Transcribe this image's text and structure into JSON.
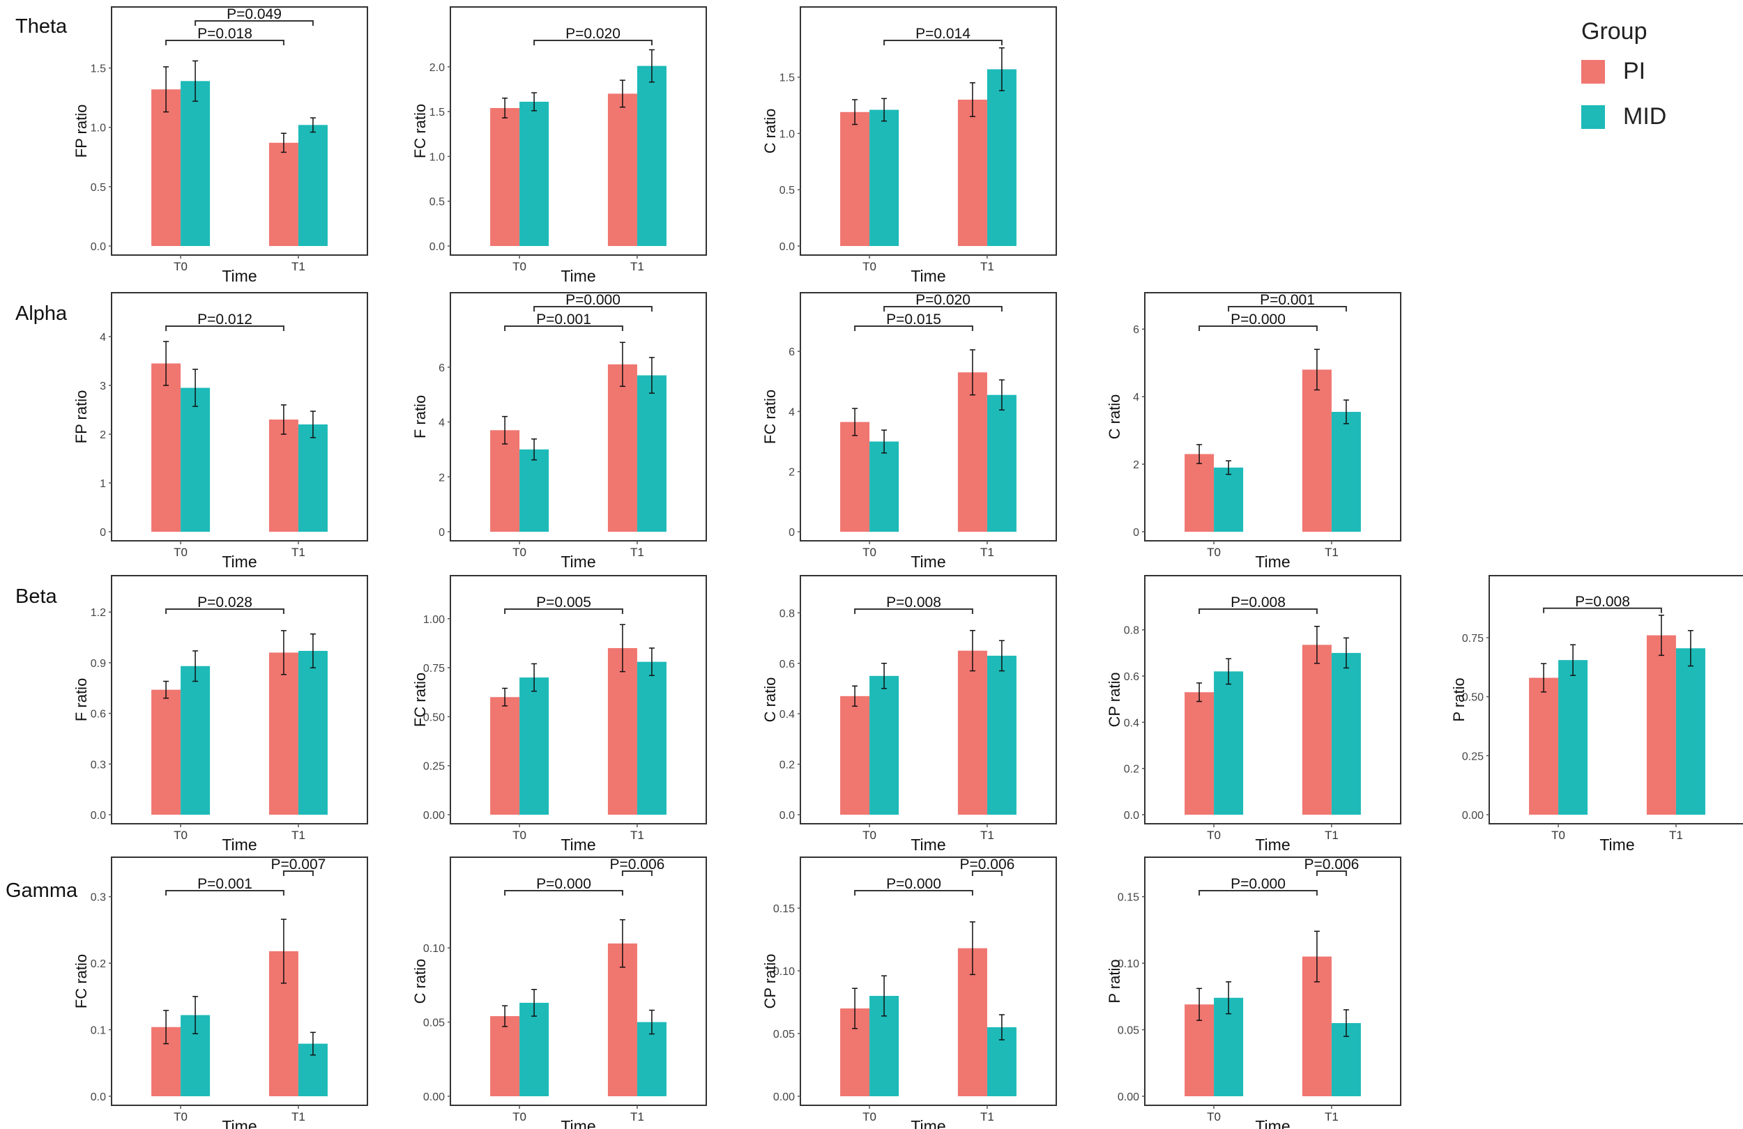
{
  "legend": {
    "title": "Group",
    "items": [
      {
        "label": "PI",
        "color": "#F07670"
      },
      {
        "label": "MID",
        "color": "#1DBAB8"
      }
    ]
  },
  "rows": [
    "Theta",
    "Alpha",
    "Beta",
    "Gamma"
  ],
  "x_label": "Time",
  "chart_data": [
    {
      "type": "bar",
      "band": "Theta",
      "ylabel": "FP  ratio",
      "categories": [
        "T0",
        "T1"
      ],
      "yticks": [
        "0.0",
        "0.5",
        "1.0",
        "1.5"
      ],
      "tickvals": [
        0,
        0.5,
        1,
        1.5
      ],
      "ylim": [
        0,
        1.85
      ],
      "series": [
        {
          "name": "PI",
          "values": [
            1.32,
            0.87
          ],
          "errors": [
            0.19,
            0.08
          ]
        },
        {
          "name": "MID",
          "values": [
            1.39,
            1.02
          ],
          "errors": [
            0.17,
            0.06
          ]
        }
      ],
      "comparisons": [
        {
          "label": "P=0.018",
          "from": [
            0,
            0
          ],
          "to": [
            1,
            0
          ]
        },
        {
          "label": "P=0.049",
          "from": [
            0,
            1
          ],
          "to": [
            1,
            1
          ]
        }
      ]
    },
    {
      "type": "bar",
      "band": "Theta",
      "ylabel": "FC  ratio",
      "categories": [
        "T0",
        "T1"
      ],
      "yticks": [
        "0.0",
        "0.5",
        "1.0",
        "1.5",
        "2.0"
      ],
      "tickvals": [
        0,
        0.5,
        1,
        1.5,
        2
      ],
      "ylim": [
        0,
        2.45
      ],
      "series": [
        {
          "name": "PI",
          "values": [
            1.54,
            1.7
          ],
          "errors": [
            0.11,
            0.15
          ]
        },
        {
          "name": "MID",
          "values": [
            1.61,
            2.01
          ],
          "errors": [
            0.1,
            0.18
          ]
        }
      ],
      "comparisons": [
        {
          "label": "P=0.020",
          "from": [
            0,
            1
          ],
          "to": [
            1,
            1
          ]
        }
      ]
    },
    {
      "type": "bar",
      "band": "Theta",
      "ylabel": "C  ratio",
      "categories": [
        "T0",
        "T1"
      ],
      "yticks": [
        "0.0",
        "0.5",
        "1.0",
        "1.5"
      ],
      "tickvals": [
        0,
        0.5,
        1,
        1.5
      ],
      "ylim": [
        0,
        1.95
      ],
      "series": [
        {
          "name": "PI",
          "values": [
            1.19,
            1.3
          ],
          "errors": [
            0.11,
            0.15
          ]
        },
        {
          "name": "MID",
          "values": [
            1.21,
            1.57
          ],
          "errors": [
            0.1,
            0.19
          ]
        }
      ],
      "comparisons": [
        {
          "label": "P=0.014",
          "from": [
            0,
            1
          ],
          "to": [
            1,
            1
          ]
        }
      ]
    },
    {
      "type": "bar",
      "band": "Alpha",
      "ylabel": "FP  ratio",
      "categories": [
        "T0",
        "T1"
      ],
      "yticks": [
        "0",
        "1",
        "2",
        "3",
        "4"
      ],
      "tickvals": [
        0,
        1,
        2,
        3,
        4
      ],
      "ylim": [
        0,
        4.5
      ],
      "series": [
        {
          "name": "PI",
          "values": [
            3.45,
            2.3
          ],
          "errors": [
            0.45,
            0.3
          ]
        },
        {
          "name": "MID",
          "values": [
            2.95,
            2.2
          ],
          "errors": [
            0.38,
            0.27
          ]
        }
      ],
      "comparisons": [
        {
          "label": "P=0.012",
          "from": [
            0,
            0
          ],
          "to": [
            1,
            0
          ]
        }
      ]
    },
    {
      "type": "bar",
      "band": "Alpha",
      "ylabel": "F  ratio",
      "categories": [
        "T0",
        "T1"
      ],
      "yticks": [
        "0",
        "2",
        "4",
        "6"
      ],
      "tickvals": [
        0,
        2,
        4,
        6
      ],
      "ylim": [
        0,
        8
      ],
      "series": [
        {
          "name": "PI",
          "values": [
            3.7,
            6.1
          ],
          "errors": [
            0.5,
            0.8
          ]
        },
        {
          "name": "MID",
          "values": [
            3.0,
            5.7
          ],
          "errors": [
            0.38,
            0.65
          ]
        }
      ],
      "comparisons": [
        {
          "label": "P=0.001",
          "from": [
            0,
            0
          ],
          "to": [
            1,
            0
          ]
        },
        {
          "label": "P=0.000",
          "from": [
            0,
            1
          ],
          "to": [
            1,
            1
          ]
        }
      ]
    },
    {
      "type": "bar",
      "band": "Alpha",
      "ylabel": "FC  ratio",
      "categories": [
        "T0",
        "T1"
      ],
      "yticks": [
        "0",
        "2",
        "4",
        "6"
      ],
      "tickvals": [
        0,
        2,
        4,
        6
      ],
      "ylim": [
        0,
        7.3
      ],
      "series": [
        {
          "name": "PI",
          "values": [
            3.65,
            5.3
          ],
          "errors": [
            0.45,
            0.75
          ]
        },
        {
          "name": "MID",
          "values": [
            3.0,
            4.55
          ],
          "errors": [
            0.38,
            0.5
          ]
        }
      ],
      "comparisons": [
        {
          "label": "P=0.015",
          "from": [
            0,
            0
          ],
          "to": [
            1,
            0
          ]
        },
        {
          "label": "P=0.020",
          "from": [
            0,
            1
          ],
          "to": [
            1,
            1
          ]
        }
      ]
    },
    {
      "type": "bar",
      "band": "Alpha",
      "ylabel": "C  ratio",
      "categories": [
        "T0",
        "T1"
      ],
      "yticks": [
        "0",
        "2",
        "4",
        "6"
      ],
      "tickvals": [
        0,
        2,
        4,
        6
      ],
      "ylim": [
        0,
        6.5
      ],
      "series": [
        {
          "name": "PI",
          "values": [
            2.3,
            4.8
          ],
          "errors": [
            0.28,
            0.6
          ]
        },
        {
          "name": "MID",
          "values": [
            1.9,
            3.55
          ],
          "errors": [
            0.2,
            0.35
          ]
        }
      ],
      "comparisons": [
        {
          "label": "P=0.000",
          "from": [
            0,
            0
          ],
          "to": [
            1,
            0
          ]
        },
        {
          "label": "P=0.001",
          "from": [
            0,
            1
          ],
          "to": [
            1,
            1
          ]
        }
      ]
    },
    {
      "type": "bar",
      "band": "Beta",
      "ylabel": "F  ratio",
      "categories": [
        "T0",
        "T1"
      ],
      "yticks": [
        "0.0",
        "0.3",
        "0.6",
        "0.9",
        "1.2"
      ],
      "tickvals": [
        0,
        0.3,
        0.6,
        0.9,
        1.2
      ],
      "ylim": [
        0,
        1.3
      ],
      "series": [
        {
          "name": "PI",
          "values": [
            0.74,
            0.96
          ],
          "errors": [
            0.05,
            0.13
          ]
        },
        {
          "name": "MID",
          "values": [
            0.88,
            0.97
          ],
          "errors": [
            0.09,
            0.1
          ]
        }
      ],
      "comparisons": [
        {
          "label": "P=0.028",
          "from": [
            0,
            0
          ],
          "to": [
            1,
            0
          ]
        }
      ]
    },
    {
      "type": "bar",
      "band": "Beta",
      "ylabel": "FC  ratio",
      "categories": [
        "T0",
        "T1"
      ],
      "yticks": [
        "0.00",
        "0.25",
        "0.50",
        "0.75",
        "1.00"
      ],
      "tickvals": [
        0,
        0.25,
        0.5,
        0.75,
        1
      ],
      "ylim": [
        0,
        1.12
      ],
      "series": [
        {
          "name": "PI",
          "values": [
            0.6,
            0.85
          ],
          "errors": [
            0.045,
            0.12
          ]
        },
        {
          "name": "MID",
          "values": [
            0.7,
            0.78
          ],
          "errors": [
            0.07,
            0.07
          ]
        }
      ],
      "comparisons": [
        {
          "label": "P=0.005",
          "from": [
            0,
            0
          ],
          "to": [
            1,
            0
          ]
        }
      ]
    },
    {
      "type": "bar",
      "band": "Beta",
      "ylabel": "C  ratio",
      "categories": [
        "T0",
        "T1"
      ],
      "yticks": [
        "0.0",
        "0.2",
        "0.4",
        "0.6",
        "0.8"
      ],
      "tickvals": [
        0,
        0.2,
        0.4,
        0.6,
        0.8
      ],
      "ylim": [
        0,
        0.87
      ],
      "series": [
        {
          "name": "PI",
          "values": [
            0.47,
            0.65
          ],
          "errors": [
            0.04,
            0.08
          ]
        },
        {
          "name": "MID",
          "values": [
            0.55,
            0.63
          ],
          "errors": [
            0.05,
            0.06
          ]
        }
      ],
      "comparisons": [
        {
          "label": "P=0.008",
          "from": [
            0,
            0
          ],
          "to": [
            1,
            0
          ]
        }
      ]
    },
    {
      "type": "bar",
      "band": "Beta",
      "ylabel": "CP  ratio",
      "categories": [
        "T0",
        "T1"
      ],
      "yticks": [
        "0.0",
        "0.2",
        "0.4",
        "0.6",
        "0.8"
      ],
      "tickvals": [
        0,
        0.2,
        0.4,
        0.6,
        0.8
      ],
      "ylim": [
        0,
        0.95
      ],
      "series": [
        {
          "name": "PI",
          "values": [
            0.53,
            0.735
          ],
          "errors": [
            0.04,
            0.08
          ]
        },
        {
          "name": "MID",
          "values": [
            0.62,
            0.7
          ],
          "errors": [
            0.055,
            0.065
          ]
        }
      ],
      "comparisons": [
        {
          "label": "P=0.008",
          "from": [
            0,
            0
          ],
          "to": [
            1,
            0
          ]
        }
      ]
    },
    {
      "type": "bar",
      "band": "Beta",
      "ylabel": "P  ratio",
      "categories": [
        "T0",
        "T1"
      ],
      "yticks": [
        "0.00",
        "0.25",
        "0.50",
        "0.75"
      ],
      "tickvals": [
        0,
        0.25,
        0.5,
        0.75
      ],
      "ylim": [
        0,
        0.93
      ],
      "series": [
        {
          "name": "PI",
          "values": [
            0.58,
            0.76
          ],
          "errors": [
            0.06,
            0.085
          ]
        },
        {
          "name": "MID",
          "values": [
            0.655,
            0.705
          ],
          "errors": [
            0.065,
            0.075
          ]
        }
      ],
      "comparisons": [
        {
          "label": "P=0.008",
          "from": [
            0,
            0
          ],
          "to": [
            1,
            0
          ]
        }
      ]
    },
    {
      "type": "bar",
      "band": "Gamma",
      "ylabel": "FC  ratio",
      "categories": [
        "T0",
        "T1"
      ],
      "yticks": [
        "0.0",
        "0.1",
        "0.2",
        "0.3"
      ],
      "tickvals": [
        0,
        0.1,
        0.2,
        0.3
      ],
      "ylim": [
        0,
        0.33
      ],
      "series": [
        {
          "name": "PI",
          "values": [
            0.104,
            0.218
          ],
          "errors": [
            0.025,
            0.048
          ]
        },
        {
          "name": "MID",
          "values": [
            0.122,
            0.079
          ],
          "errors": [
            0.028,
            0.017
          ]
        }
      ],
      "comparisons": [
        {
          "label": "P=0.001",
          "from": [
            0,
            0
          ],
          "to": [
            1,
            0
          ]
        },
        {
          "label": "P=0.007",
          "from": [
            1,
            0
          ],
          "to": [
            1,
            1
          ]
        }
      ]
    },
    {
      "type": "bar",
      "band": "Gamma",
      "ylabel": "C  ratio",
      "categories": [
        "T0",
        "T1"
      ],
      "yticks": [
        "0.00",
        "0.05",
        "0.10"
      ],
      "tickvals": [
        0,
        0.05,
        0.1
      ],
      "ylim": [
        0,
        0.148
      ],
      "series": [
        {
          "name": "PI",
          "values": [
            0.054,
            0.103
          ],
          "errors": [
            0.007,
            0.016
          ]
        },
        {
          "name": "MID",
          "values": [
            0.063,
            0.05
          ],
          "errors": [
            0.009,
            0.008
          ]
        }
      ],
      "comparisons": [
        {
          "label": "P=0.000",
          "from": [
            0,
            0
          ],
          "to": [
            1,
            0
          ]
        },
        {
          "label": "P=0.006",
          "from": [
            1,
            0
          ],
          "to": [
            1,
            1
          ]
        }
      ]
    },
    {
      "type": "bar",
      "band": "Gamma",
      "ylabel": "CP  ratio",
      "categories": [
        "T0",
        "T1"
      ],
      "yticks": [
        "0.00",
        "0.05",
        "0.10",
        "0.15"
      ],
      "tickvals": [
        0,
        0.05,
        0.1,
        0.15
      ],
      "ylim": [
        0,
        0.175
      ],
      "series": [
        {
          "name": "PI",
          "values": [
            0.07,
            0.118
          ],
          "errors": [
            0.016,
            0.021
          ]
        },
        {
          "name": "MID",
          "values": [
            0.08,
            0.055
          ],
          "errors": [
            0.016,
            0.01
          ]
        }
      ],
      "comparisons": [
        {
          "label": "P=0.000",
          "from": [
            0,
            0
          ],
          "to": [
            1,
            0
          ]
        },
        {
          "label": "P=0.006",
          "from": [
            1,
            0
          ],
          "to": [
            1,
            1
          ]
        }
      ]
    },
    {
      "type": "bar",
      "band": "Gamma",
      "ylabel": "P  ratio",
      "categories": [
        "T0",
        "T1"
      ],
      "yticks": [
        "0.00",
        "0.05",
        "0.10",
        "0.15"
      ],
      "tickvals": [
        0,
        0.05,
        0.1,
        0.15
      ],
      "ylim": [
        0,
        0.165
      ],
      "series": [
        {
          "name": "PI",
          "values": [
            0.069,
            0.105
          ],
          "errors": [
            0.012,
            0.019
          ]
        },
        {
          "name": "MID",
          "values": [
            0.074,
            0.055
          ],
          "errors": [
            0.012,
            0.01
          ]
        }
      ],
      "comparisons": [
        {
          "label": "P=0.000",
          "from": [
            0,
            0
          ],
          "to": [
            1,
            0
          ]
        },
        {
          "label": "P=0.006",
          "from": [
            1,
            0
          ],
          "to": [
            1,
            1
          ]
        }
      ]
    }
  ]
}
